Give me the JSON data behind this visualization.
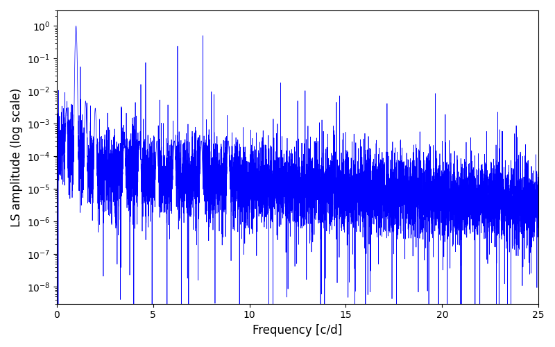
{
  "title": "",
  "xlabel": "Frequency [c/d]",
  "ylabel": "LS amplitude (log scale)",
  "line_color": "#0000ff",
  "xlim": [
    0,
    25
  ],
  "ylim_bottom": 3e-09,
  "ylim_top": 3.0,
  "freq_max": 25,
  "n_points": 8000,
  "peak_freq": 1.0,
  "peak_amp": 1.0,
  "seed": 12345,
  "figsize": [
    8.0,
    5.0
  ],
  "dpi": 100
}
